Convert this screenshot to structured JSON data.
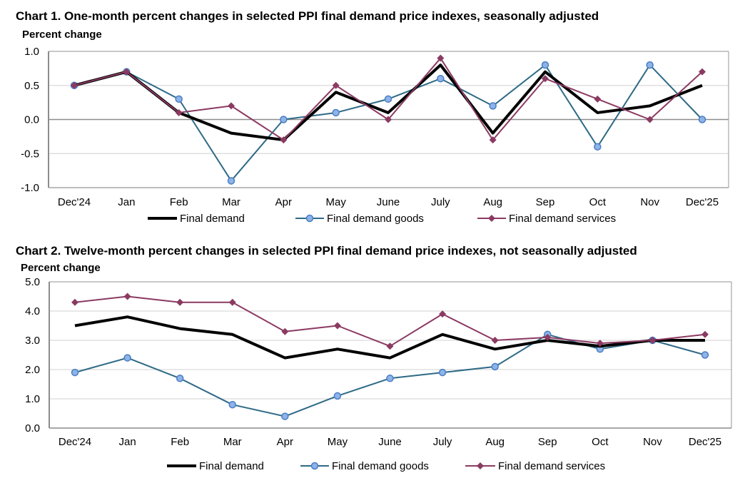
{
  "colors": {
    "final_demand": "#000000",
    "goods_line": "#2e6a86",
    "goods_marker_fill": "#8db3e8",
    "goods_marker_stroke": "#4a7ec4",
    "services": "#8b3a62",
    "grid": "#d9d9d9",
    "zero_line": "#8c8c8c",
    "frame": "#a6a6a6"
  },
  "chart_data": [
    {
      "type": "line",
      "title": "Chart 1. One-month percent changes in selected PPI final demand price indexes, seasonally adjusted",
      "ylabel": "Percent change",
      "xlabel": "",
      "categories": [
        "Dec'24",
        "Jan",
        "Feb",
        "Mar",
        "Apr",
        "May",
        "June",
        "July",
        "Aug",
        "Sep",
        "Oct",
        "Nov",
        "Dec'25"
      ],
      "ylim": [
        -1.0,
        1.0
      ],
      "yticks": [
        "1.0",
        "0.5",
        "0.0",
        "-0.5",
        "-1.0"
      ],
      "ytick_values": [
        1.0,
        0.5,
        0.0,
        -0.5,
        -1.0
      ],
      "grid": true,
      "legend_position": "bottom",
      "series": [
        {
          "name": "Final demand",
          "key": "final_demand",
          "marker": "none",
          "values": [
            0.5,
            0.7,
            0.1,
            -0.2,
            -0.3,
            0.4,
            0.1,
            0.8,
            -0.2,
            0.7,
            0.1,
            0.2,
            0.5
          ]
        },
        {
          "name": "Final demand goods",
          "key": "goods",
          "marker": "circle",
          "values": [
            0.5,
            0.7,
            0.3,
            -0.9,
            0.0,
            0.1,
            0.3,
            0.6,
            0.2,
            0.8,
            -0.4,
            0.8,
            0.0
          ]
        },
        {
          "name": "Final demand services",
          "key": "services",
          "marker": "diamond",
          "values": [
            0.5,
            0.7,
            0.1,
            0.2,
            -0.3,
            0.5,
            0.0,
            0.9,
            -0.3,
            0.6,
            0.3,
            0.0,
            0.7
          ]
        }
      ]
    },
    {
      "type": "line",
      "title": "Chart 2. Twelve-month percent changes in selected PPI final demand price indexes, not seasonally adjusted",
      "ylabel": "Percent change",
      "xlabel": "",
      "categories": [
        "Dec'24",
        "Jan",
        "Feb",
        "Mar",
        "Apr",
        "May",
        "June",
        "July",
        "Aug",
        "Sep",
        "Oct",
        "Nov",
        "Dec'25"
      ],
      "ylim": [
        0.0,
        5.0
      ],
      "yticks": [
        "5.0",
        "4.0",
        "3.0",
        "2.0",
        "1.0",
        "0.0"
      ],
      "ytick_values": [
        5.0,
        4.0,
        3.0,
        2.0,
        1.0,
        0.0
      ],
      "grid": true,
      "legend_position": "bottom",
      "series": [
        {
          "name": "Final demand",
          "key": "final_demand",
          "marker": "none",
          "values": [
            3.5,
            3.8,
            3.4,
            3.2,
            2.4,
            2.7,
            2.4,
            3.2,
            2.7,
            3.0,
            2.8,
            3.0,
            3.0
          ]
        },
        {
          "name": "Final demand goods",
          "key": "goods",
          "marker": "circle",
          "values": [
            1.9,
            2.4,
            1.7,
            0.8,
            0.4,
            1.1,
            1.7,
            1.9,
            2.1,
            3.2,
            2.7,
            3.0,
            2.5
          ]
        },
        {
          "name": "Final demand services",
          "key": "services",
          "marker": "diamond",
          "values": [
            4.3,
            4.5,
            4.3,
            4.3,
            3.3,
            3.5,
            2.8,
            3.9,
            3.0,
            3.1,
            2.9,
            3.0,
            3.2
          ]
        }
      ]
    }
  ]
}
